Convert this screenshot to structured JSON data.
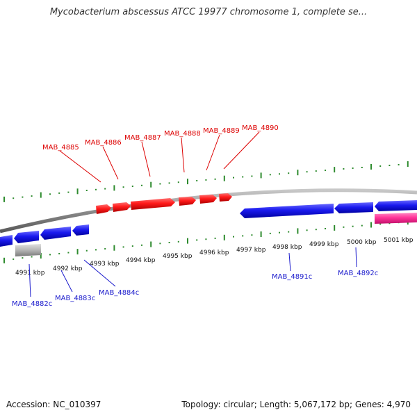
{
  "title": "Mycobacterium abscessus ATCC 19977 chromosome 1, complete se...",
  "footer": {
    "accession": "Accession: NC_010397",
    "summary": "Topology: circular; Length: 5,067,172 bp; Genes: 4,970"
  },
  "colors": {
    "forward_gene": "#ff1a1a",
    "reverse_gene": "#1a1aee",
    "pink_feature": "#ff3399",
    "gray_feature": "#b4b4b4",
    "backbone": "#8c8c8c",
    "ticks": "#2e8b2e",
    "forward_label": "#dd0000",
    "reverse_label": "#1a1acc"
  },
  "scale_labels": [
    "4991 kbp",
    "4992 kbp",
    "4993 kbp",
    "4994 kbp",
    "4995 kbp",
    "4996 kbp",
    "4997 kbp",
    "4998 kbp",
    "4999 kbp",
    "5000 kbp",
    "5001 kbp"
  ],
  "forward_gene_labels": [
    "MAB_4885",
    "MAB_4886",
    "MAB_4887",
    "MAB_4888",
    "MAB_4889",
    "MAB_4890"
  ],
  "reverse_gene_labels": [
    "MAB_4882c",
    "MAB_4883c",
    "MAB_4884c",
    "MAB_4891c",
    "MAB_4892c"
  ]
}
